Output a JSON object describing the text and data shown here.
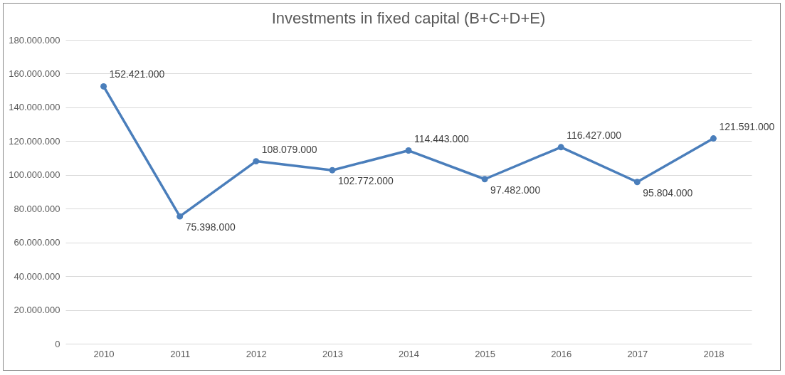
{
  "chart_data": {
    "type": "line",
    "title": "Investments in fixed capital (B+C+D+E)",
    "categories": [
      "2010",
      "2011",
      "2012",
      "2013",
      "2014",
      "2015",
      "2016",
      "2017",
      "2018"
    ],
    "series": [
      {
        "color": "#4a7ebb",
        "values": [
          152421000,
          75398000,
          108079000,
          102772000,
          114443000,
          97482000,
          116427000,
          95804000,
          121591000
        ]
      }
    ],
    "value_labels": [
      "152.421.000",
      "75.398.000",
      "108.079.000",
      "102.772.000",
      "114.443.000",
      "97.482.000",
      "116.427.000",
      "95.804.000",
      "121.591.000"
    ],
    "ylim": [
      0,
      180000000
    ],
    "yticks": [
      {
        "value": 0,
        "label": "0"
      },
      {
        "value": 20000000,
        "label": "20.000.000"
      },
      {
        "value": 40000000,
        "label": "40.000.000"
      },
      {
        "value": 60000000,
        "label": "60.000.000"
      },
      {
        "value": 80000000,
        "label": "80.000.000"
      },
      {
        "value": 100000000,
        "label": "100.000.000"
      },
      {
        "value": 120000000,
        "label": "120.000.000"
      },
      {
        "value": 140000000,
        "label": "140.000.000"
      },
      {
        "value": 160000000,
        "label": "160.000.000"
      },
      {
        "value": 180000000,
        "label": "180.000.000"
      }
    ],
    "grid": "y",
    "marker": "circle",
    "line_style": "solid"
  }
}
